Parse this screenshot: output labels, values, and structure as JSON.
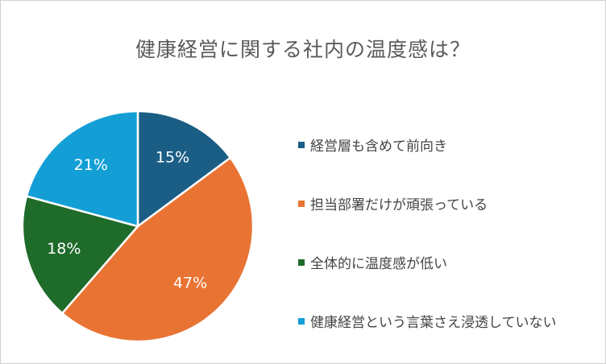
{
  "title": "健康経営に関する社内の温度感は？",
  "chart_data": {
    "type": "pie",
    "title": "健康経営に関する社内の温度感は？",
    "legend_position": "right",
    "slices": [
      {
        "label": "経営層も含めて前向き",
        "value": 15,
        "display": "15%",
        "color": "#1b5e85"
      },
      {
        "label": "担当部署だけが頑張っている",
        "value": 47,
        "display": "47%",
        "color": "#e97333"
      },
      {
        "label": "全体的に温度感が低い",
        "value": 18,
        "display": "18%",
        "color": "#1f6b2a"
      },
      {
        "label": "健康経営という言葉さえ浸透していない",
        "value": 21,
        "display": "21%",
        "color": "#139fd6"
      }
    ]
  }
}
